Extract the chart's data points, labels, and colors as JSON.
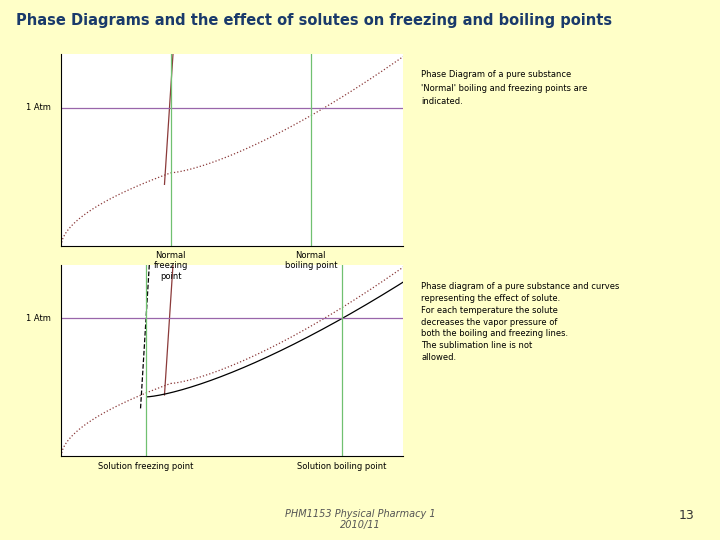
{
  "title": "Phase Diagrams and the effect of solutes on freezing and boiling points",
  "title_color": "#1a3a6b",
  "slide_bg": "#ffffc8",
  "footer_text": "PHM1153 Physical Pharmacy 1\n2010/11",
  "footer_page": "13",
  "annotation1_line1": "Phase Diagram of a pure substance",
  "annotation1_line2": "'Normal' boiling and freezing points are",
  "annotation1_line3": "indicated.",
  "annotation2_line1": "Phase diagram of a pure substance and curves",
  "annotation2_line2": "representing the effect of solute.",
  "annotation2_line3": "For each temperature the solute",
  "annotation2_line4": "decreases the vapor pressure of",
  "annotation2_line5": "both the boiling and freezing lines.",
  "annotation2_line6": "The sublimation line is not",
  "annotation2_line7": "allowed.",
  "label_norm_freeze": "Normal\nfreezing\npoint",
  "label_norm_boil": "Normal\nboiling point",
  "label_sol_freeze": "Solution freezing point",
  "label_sol_boil": "Solution boiling point",
  "label_1atm": "1 Atm",
  "line_color_pure": "#8B3A3A",
  "vline_color": "#70C070",
  "hline_color": "#9966AA",
  "footer_color": "#555555"
}
